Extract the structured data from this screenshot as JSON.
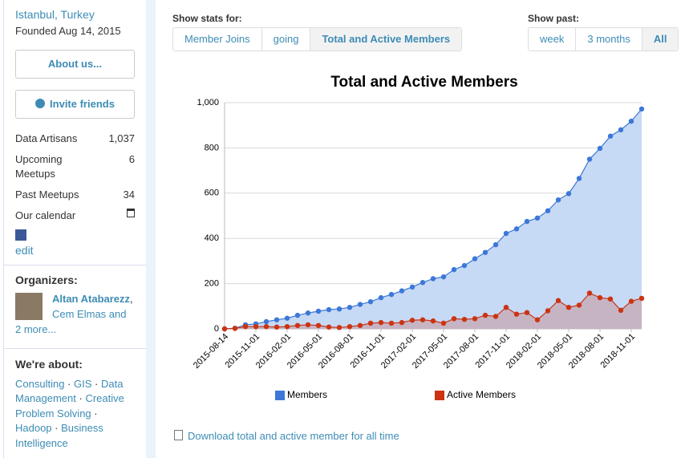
{
  "sidebar": {
    "location": "Istanbul, Turkey",
    "founded": "Founded Aug 14, 2015",
    "about_button": "About us...",
    "invite_button": "Invite friends",
    "stats": [
      [
        "Data Artisans",
        "1,037"
      ],
      [
        "Upcoming Meetups",
        "6"
      ],
      [
        "Past Meetups",
        "34"
      ]
    ],
    "calendar": "Our calendar",
    "edit": "edit",
    "organizers_heading": "Organizers:",
    "organizer_main": "Altan Atabarezz",
    "organizer_sep": ",",
    "organizer_more": "Cem Elmas and 2 more...",
    "about_heading": "We're about:",
    "topics": [
      "Consulting",
      "GIS",
      "Data Management",
      "Creative Problem Solving",
      "Hadoop",
      "Business Intelligence"
    ]
  },
  "stats_for": {
    "label": "Show stats for:",
    "tabs": [
      "Member Joins",
      "going",
      "Total and Active Members"
    ],
    "selected": 2
  },
  "show_past": {
    "label": "Show past:",
    "tabs": [
      "week",
      "3 months",
      "All"
    ],
    "selected": 2
  },
  "download": "Download total and active member for all time",
  "chart_data": {
    "type": "area",
    "title": "Total and Active Members",
    "categories": [
      "2015-08-14",
      null,
      null,
      "2015-11-01",
      null,
      null,
      "2016-02-01",
      null,
      null,
      "2016-05-01",
      null,
      null,
      "2016-08-01",
      null,
      null,
      "2016-11-01",
      null,
      null,
      "2017-02-01",
      null,
      null,
      "2017-05-01",
      null,
      null,
      "2017-08-01",
      null,
      null,
      "2017-11-01",
      null,
      null,
      "2018-02-01",
      null,
      null,
      "2018-05-01",
      null,
      null,
      "2018-08-01",
      null,
      null,
      "2018-11-01",
      null
    ],
    "series": [
      {
        "name": "Members",
        "color": "#3c78d8",
        "fill": "#c6d9f5",
        "values": [
          0,
          3,
          18,
          22,
          32,
          40,
          47,
          60,
          70,
          78,
          85,
          88,
          95,
          108,
          120,
          138,
          152,
          168,
          185,
          205,
          222,
          230,
          262,
          280,
          310,
          338,
          372,
          422,
          442,
          475,
          490,
          522,
          570,
          598,
          665,
          750,
          798,
          852,
          880,
          918,
          972
        ]
      },
      {
        "name": "Active Members",
        "color": "#cc3311",
        "fill": "rgba(204,51,17,0.22)",
        "values": [
          0,
          2,
          10,
          10,
          10,
          8,
          10,
          15,
          18,
          15,
          8,
          6,
          10,
          15,
          25,
          28,
          25,
          28,
          38,
          40,
          35,
          25,
          45,
          42,
          45,
          60,
          55,
          95,
          65,
          72,
          40,
          80,
          125,
          95,
          105,
          158,
          138,
          132,
          82,
          122,
          135
        ]
      }
    ],
    "ylim": [
      0,
      1000
    ],
    "yticks": [
      0,
      200,
      400,
      600,
      800,
      {
        "value": 1000,
        "label": "1,000"
      }
    ],
    "grid": true,
    "legend": "bottom"
  }
}
